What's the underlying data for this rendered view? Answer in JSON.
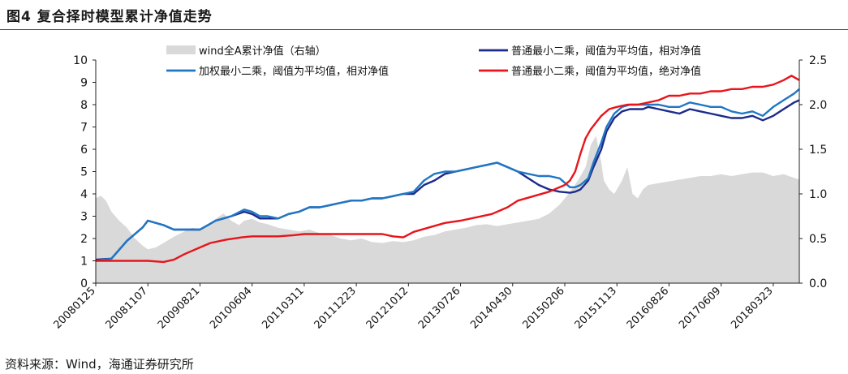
{
  "figure": {
    "title": "图4   复合择时模型累计净值走势",
    "source": "资料来源：Wind，海通证券研究所"
  },
  "chart_data": {
    "type": "line",
    "title": "复合择时模型累计净值走势",
    "grid": false,
    "legend_placement": "top",
    "x_tick_labels": [
      "20080125",
      "20081107",
      "20090821",
      "20100604",
      "20110311",
      "20111223",
      "20121012",
      "20130726",
      "20140430",
      "20150206",
      "20151113",
      "20160826",
      "20170609",
      "20180323"
    ],
    "ylim_left": [
      0,
      10
    ],
    "yticks_left": [
      "0",
      "1",
      "2",
      "3",
      "4",
      "5",
      "6",
      "7",
      "8",
      "9",
      "10"
    ],
    "ylim_right": [
      0,
      2.5
    ],
    "yticks_right": [
      "0.0",
      "0.5",
      "1.0",
      "1.5",
      "2.0",
      "2.5"
    ],
    "x_domain": [
      0,
      13.5
    ],
    "series": [
      {
        "name": "wind全A累计净值（右轴）",
        "type": "area",
        "axis": "right",
        "color": "#d9d9d9",
        "x": [
          0,
          0.1,
          0.2,
          0.3,
          0.45,
          0.6,
          0.75,
          0.9,
          1.0,
          1.15,
          1.3,
          1.5,
          1.7,
          1.85,
          2.0,
          2.15,
          2.3,
          2.45,
          2.6,
          2.75,
          2.85,
          3.0,
          3.15,
          3.3,
          3.5,
          3.7,
          3.9,
          4.1,
          4.3,
          4.5,
          4.7,
          4.9,
          5.1,
          5.3,
          5.5,
          5.7,
          5.9,
          6.1,
          6.3,
          6.5,
          6.7,
          6.9,
          7.1,
          7.3,
          7.5,
          7.7,
          7.9,
          8.1,
          8.3,
          8.5,
          8.7,
          8.9,
          9.1,
          9.25,
          9.4,
          9.5,
          9.6,
          9.7,
          9.75,
          9.85,
          9.95,
          10.1,
          10.2,
          10.3,
          10.4,
          10.5,
          10.6,
          10.8,
          11.0,
          11.2,
          11.4,
          11.6,
          11.8,
          12.0,
          12.2,
          12.4,
          12.6,
          12.8,
          13.0,
          13.2,
          13.4,
          13.5
        ],
        "values": [
          0.95,
          0.98,
          0.92,
          0.8,
          0.7,
          0.62,
          0.5,
          0.42,
          0.38,
          0.4,
          0.45,
          0.52,
          0.58,
          0.62,
          0.6,
          0.65,
          0.72,
          0.78,
          0.7,
          0.65,
          0.7,
          0.72,
          0.68,
          0.66,
          0.62,
          0.6,
          0.58,
          0.6,
          0.56,
          0.54,
          0.5,
          0.48,
          0.5,
          0.46,
          0.45,
          0.47,
          0.46,
          0.48,
          0.52,
          0.54,
          0.58,
          0.6,
          0.62,
          0.65,
          0.66,
          0.64,
          0.66,
          0.68,
          0.7,
          0.72,
          0.78,
          0.88,
          1.02,
          1.15,
          1.3,
          1.55,
          1.65,
          1.35,
          1.15,
          1.05,
          1.0,
          1.15,
          1.3,
          1.0,
          0.95,
          1.05,
          1.1,
          1.12,
          1.14,
          1.16,
          1.18,
          1.2,
          1.2,
          1.22,
          1.2,
          1.22,
          1.24,
          1.24,
          1.2,
          1.22,
          1.18,
          1.16
        ]
      },
      {
        "name": "普通最小二乘，阈值为平均值，相对净值",
        "type": "line",
        "axis": "left",
        "color": "#1c2a8a",
        "x": [
          0,
          0.3,
          0.45,
          0.6,
          0.75,
          0.9,
          1.0,
          1.3,
          1.5,
          1.7,
          1.85,
          2.0,
          2.15,
          2.3,
          2.45,
          2.6,
          2.85,
          3.0,
          3.15,
          3.3,
          3.5,
          3.7,
          3.9,
          4.1,
          4.3,
          4.5,
          4.7,
          4.9,
          5.1,
          5.3,
          5.5,
          5.7,
          5.9,
          6.1,
          6.3,
          6.5,
          6.7,
          6.9,
          7.1,
          7.3,
          7.5,
          7.7,
          7.9,
          8.1,
          8.3,
          8.5,
          8.7,
          8.9,
          9.1,
          9.2,
          9.3,
          9.45,
          9.55,
          9.7,
          9.8,
          9.95,
          10.1,
          10.25,
          10.4,
          10.5,
          10.6,
          10.8,
          11.0,
          11.2,
          11.4,
          11.6,
          11.8,
          12.0,
          12.2,
          12.4,
          12.6,
          12.8,
          13.0,
          13.2,
          13.4,
          13.5
        ],
        "values": [
          1.05,
          1.1,
          1.5,
          1.9,
          2.2,
          2.5,
          2.8,
          2.6,
          2.4,
          2.4,
          2.4,
          2.4,
          2.6,
          2.8,
          2.9,
          3.0,
          3.2,
          3.1,
          2.9,
          2.9,
          2.9,
          3.1,
          3.2,
          3.4,
          3.4,
          3.5,
          3.6,
          3.7,
          3.7,
          3.8,
          3.8,
          3.9,
          4.0,
          4.0,
          4.4,
          4.6,
          4.9,
          5.0,
          5.1,
          5.2,
          5.3,
          5.4,
          5.2,
          5.0,
          4.7,
          4.4,
          4.2,
          4.1,
          4.05,
          4.1,
          4.2,
          4.6,
          5.2,
          6.0,
          6.8,
          7.4,
          7.7,
          7.8,
          7.8,
          7.8,
          7.9,
          7.8,
          7.7,
          7.6,
          7.8,
          7.7,
          7.6,
          7.5,
          7.4,
          7.4,
          7.5,
          7.3,
          7.5,
          7.8,
          8.1,
          8.2
        ]
      },
      {
        "name": "加权最小二乘，阈值为平均值，相对净值",
        "type": "line",
        "axis": "left",
        "color": "#1f77c4",
        "x": [
          0,
          0.3,
          0.45,
          0.6,
          0.75,
          0.9,
          1.0,
          1.3,
          1.5,
          1.7,
          1.85,
          2.0,
          2.15,
          2.3,
          2.45,
          2.6,
          2.85,
          3.0,
          3.15,
          3.3,
          3.5,
          3.7,
          3.9,
          4.1,
          4.3,
          4.5,
          4.7,
          4.9,
          5.1,
          5.3,
          5.5,
          5.7,
          5.9,
          6.1,
          6.3,
          6.5,
          6.7,
          6.9,
          7.1,
          7.3,
          7.5,
          7.7,
          7.9,
          8.1,
          8.3,
          8.5,
          8.7,
          8.9,
          9.1,
          9.2,
          9.3,
          9.45,
          9.55,
          9.7,
          9.8,
          9.95,
          10.1,
          10.25,
          10.4,
          10.5,
          10.6,
          10.8,
          11.0,
          11.2,
          11.4,
          11.6,
          11.8,
          12.0,
          12.2,
          12.4,
          12.6,
          12.8,
          13.0,
          13.2,
          13.4,
          13.5
        ],
        "values": [
          1.0,
          1.1,
          1.5,
          1.9,
          2.2,
          2.5,
          2.8,
          2.6,
          2.4,
          2.4,
          2.4,
          2.4,
          2.6,
          2.8,
          2.9,
          3.0,
          3.3,
          3.2,
          3.0,
          3.0,
          2.9,
          3.1,
          3.2,
          3.4,
          3.4,
          3.5,
          3.6,
          3.7,
          3.7,
          3.8,
          3.8,
          3.9,
          4.0,
          4.1,
          4.6,
          4.9,
          5.0,
          5.0,
          5.1,
          5.2,
          5.3,
          5.4,
          5.2,
          5.0,
          4.9,
          4.8,
          4.8,
          4.7,
          4.3,
          4.3,
          4.4,
          4.7,
          5.4,
          6.3,
          7.0,
          7.6,
          7.9,
          8.0,
          8.0,
          8.0,
          8.0,
          8.0,
          7.9,
          7.9,
          8.1,
          8.0,
          7.9,
          7.9,
          7.7,
          7.6,
          7.7,
          7.5,
          7.9,
          8.2,
          8.5,
          8.7
        ]
      },
      {
        "name": "普通最小二乘，阈值为平均值，绝对净值",
        "type": "line",
        "axis": "left",
        "color": "#e8141b",
        "x": [
          0,
          0.5,
          1.0,
          1.3,
          1.5,
          1.7,
          2.0,
          2.2,
          2.5,
          2.8,
          3.0,
          3.3,
          3.5,
          3.8,
          4.0,
          4.3,
          4.5,
          4.8,
          5.0,
          5.3,
          5.5,
          5.7,
          5.9,
          6.1,
          6.4,
          6.7,
          7.0,
          7.3,
          7.6,
          7.9,
          8.1,
          8.4,
          8.7,
          9.0,
          9.1,
          9.2,
          9.3,
          9.4,
          9.5,
          9.6,
          9.7,
          9.85,
          10.0,
          10.2,
          10.4,
          10.6,
          10.8,
          11.0,
          11.2,
          11.4,
          11.6,
          11.8,
          12.0,
          12.2,
          12.4,
          12.6,
          12.8,
          13.0,
          13.2,
          13.35,
          13.5
        ],
        "values": [
          1.0,
          1.0,
          1.0,
          0.95,
          1.05,
          1.3,
          1.6,
          1.8,
          1.95,
          2.05,
          2.1,
          2.1,
          2.1,
          2.15,
          2.2,
          2.2,
          2.2,
          2.2,
          2.2,
          2.2,
          2.2,
          2.1,
          2.05,
          2.3,
          2.5,
          2.7,
          2.8,
          2.95,
          3.1,
          3.4,
          3.7,
          3.9,
          4.1,
          4.4,
          4.6,
          5.0,
          5.8,
          6.5,
          6.9,
          7.2,
          7.5,
          7.8,
          7.9,
          8.0,
          8.0,
          8.1,
          8.2,
          8.4,
          8.4,
          8.5,
          8.5,
          8.6,
          8.6,
          8.7,
          8.7,
          8.8,
          8.8,
          8.9,
          9.1,
          9.3,
          9.1
        ]
      }
    ]
  }
}
